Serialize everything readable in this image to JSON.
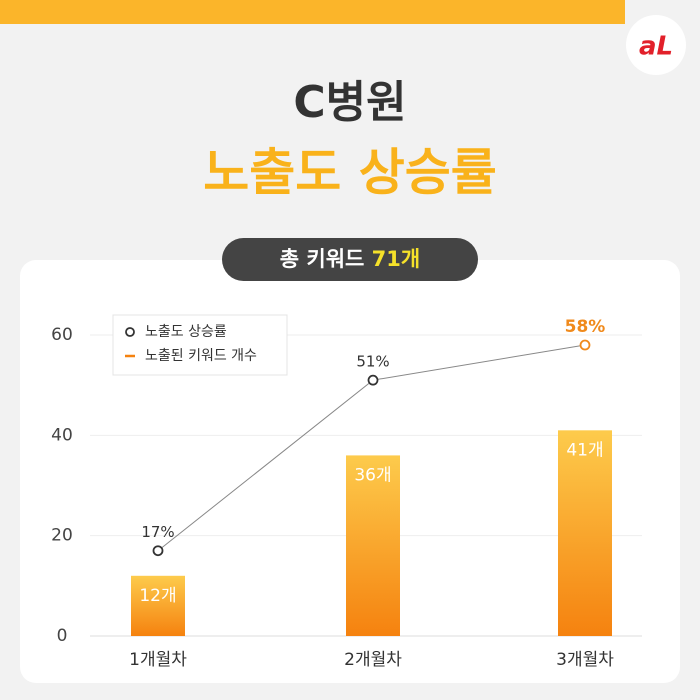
{
  "logo_text": "aL",
  "header": {
    "title": "C병원",
    "subtitle": "노출도 상승률",
    "badge_prefix": "총 키워드",
    "badge_highlight": "71개"
  },
  "chart_data": {
    "type": "bar-line",
    "categories": [
      "1개월차",
      "2개월차",
      "3개월차"
    ],
    "series": [
      {
        "name": "노출도 상승률",
        "type": "line",
        "color": "#888888",
        "values": [
          17,
          51,
          58
        ],
        "value_labels": [
          "17%",
          "51%",
          "58%"
        ],
        "highlight_index": 2,
        "highlight_color": "#f08a1c"
      },
      {
        "name": "노출된 키워드 개수",
        "type": "bar",
        "color": "#f5820f",
        "values": [
          12,
          36,
          41
        ],
        "value_labels": [
          "12개",
          "36개",
          "41개"
        ]
      }
    ],
    "ylim": [
      0,
      60
    ],
    "yticks": [
      0,
      20,
      40,
      60
    ],
    "grid": true,
    "legend": "top-left"
  }
}
